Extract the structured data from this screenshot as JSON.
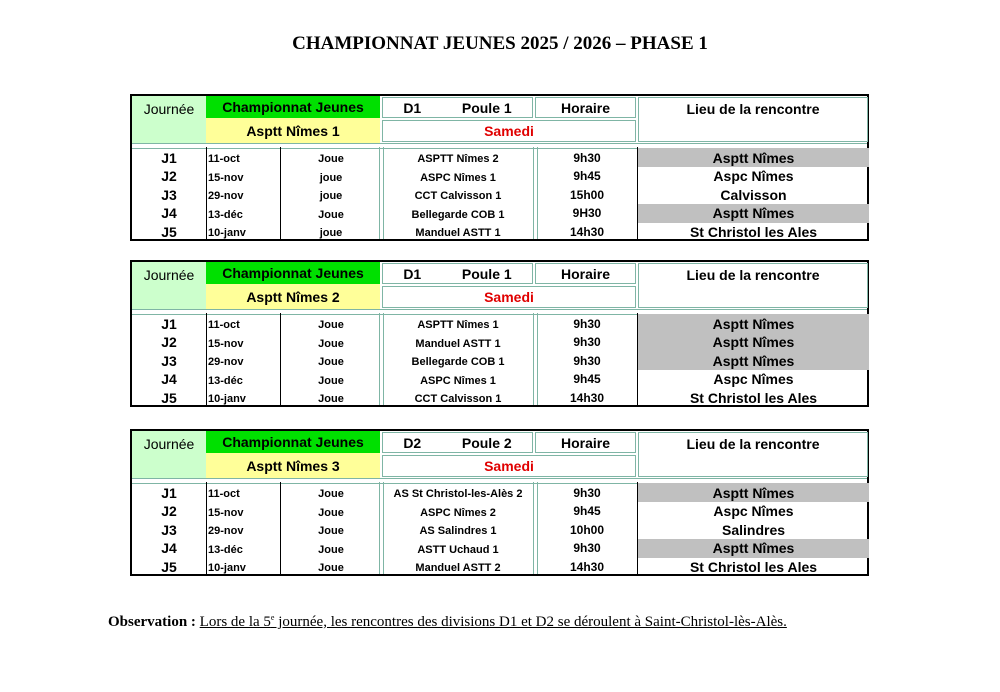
{
  "title": "CHAMPIONNAT JEUNES 2025 / 2026 – PHASE 1",
  "colors": {
    "green": "#00e000",
    "yellow": "#ffff99",
    "light_green": "#ccffcc",
    "red": "#e00000",
    "gray": "#c0c0c0"
  },
  "tables": [
    {
      "journee": "Journée",
      "championnat": "Championnat Jeunes",
      "team": "Asptt Nîmes 1",
      "division": "D1",
      "poule": "Poule 1",
      "horaire": "Horaire",
      "jour": "Samedi",
      "lieu": "Lieu de la rencontre",
      "rows": [
        {
          "j": "J1",
          "date": "11-oct",
          "status": "Joue",
          "opponent": "ASPTT Nîmes 2",
          "time": "9h30",
          "place": "Asptt Nîmes",
          "highlight": true
        },
        {
          "j": "J2",
          "date": "15-nov",
          "status": "joue",
          "opponent": "ASPC Nîmes 1",
          "time": "9h45",
          "place": "Aspc Nîmes",
          "highlight": false
        },
        {
          "j": "J3",
          "date": "29-nov",
          "status": "joue",
          "opponent": "CCT Calvisson 1",
          "time": "15h00",
          "place": "Calvisson",
          "highlight": false
        },
        {
          "j": "J4",
          "date": "13-déc",
          "status": "Joue",
          "opponent": "Bellegarde COB 1",
          "time": "9H30",
          "place": "Asptt Nîmes",
          "highlight": true
        },
        {
          "j": "J5",
          "date": "10-janv",
          "status": "joue",
          "opponent": "Manduel ASTT 1",
          "time": "14h30",
          "place": "St Christol les Ales",
          "highlight": false
        }
      ]
    },
    {
      "journee": "Journée",
      "championnat": "Championnat Jeunes",
      "team": "Asptt Nîmes 2",
      "division": "D1",
      "poule": "Poule 1",
      "horaire": "Horaire",
      "jour": "Samedi",
      "lieu": "Lieu de la rencontre",
      "rows": [
        {
          "j": "J1",
          "date": "11-oct",
          "status": "Joue",
          "opponent": "ASPTT Nîmes 1",
          "time": "9h30",
          "place": "Asptt Nîmes",
          "highlight": true
        },
        {
          "j": "J2",
          "date": "15-nov",
          "status": "Joue",
          "opponent": "Manduel ASTT 1",
          "time": "9h30",
          "place": "Asptt Nîmes",
          "highlight": true
        },
        {
          "j": "J3",
          "date": "29-nov",
          "status": "Joue",
          "opponent": "Bellegarde COB 1",
          "time": "9h30",
          "place": "Asptt Nîmes",
          "highlight": true
        },
        {
          "j": "J4",
          "date": "13-déc",
          "status": "Joue",
          "opponent": "ASPC Nîmes 1",
          "time": "9h45",
          "place": "Aspc Nîmes",
          "highlight": false
        },
        {
          "j": "J5",
          "date": "10-janv",
          "status": "Joue",
          "opponent": "CCT Calvisson 1",
          "time": "14h30",
          "place": "St Christol les Ales",
          "highlight": false
        }
      ]
    },
    {
      "journee": "Journée",
      "championnat": "Championnat Jeunes",
      "team": "Asptt Nîmes 3",
      "division": "D2",
      "poule": "Poule 2",
      "horaire": "Horaire",
      "jour": "Samedi",
      "lieu": "Lieu de la rencontre",
      "rows": [
        {
          "j": "J1",
          "date": "11-oct",
          "status": "Joue",
          "opponent": "AS St Christol-les-Alès 2",
          "time": "9h30",
          "place": "Asptt Nîmes",
          "highlight": true
        },
        {
          "j": "J2",
          "date": "15-nov",
          "status": "Joue",
          "opponent": "ASPC Nîmes 2",
          "time": "9h45",
          "place": "Aspc Nîmes",
          "highlight": false
        },
        {
          "j": "J3",
          "date": "29-nov",
          "status": "Joue",
          "opponent": "AS Salindres 1",
          "time": "10h00",
          "place": "Salindres",
          "highlight": false
        },
        {
          "j": "J4",
          "date": "13-déc",
          "status": "Joue",
          "opponent": "ASTT Uchaud 1",
          "time": "9h30",
          "place": "Asptt Nîmes",
          "highlight": true
        },
        {
          "j": "J5",
          "date": "10-janv",
          "status": "Joue",
          "opponent": "Manduel ASTT 2",
          "time": "14h30",
          "place": "St Christol les Ales",
          "highlight": false
        }
      ]
    }
  ],
  "observation": {
    "label": "Observation :",
    "text_before": "Lors de la 5",
    "sup": "e",
    "text_after": " journée, les rencontres des divisions D1 et D2 se déroulent à Saint-Christol-lès-Alès."
  }
}
